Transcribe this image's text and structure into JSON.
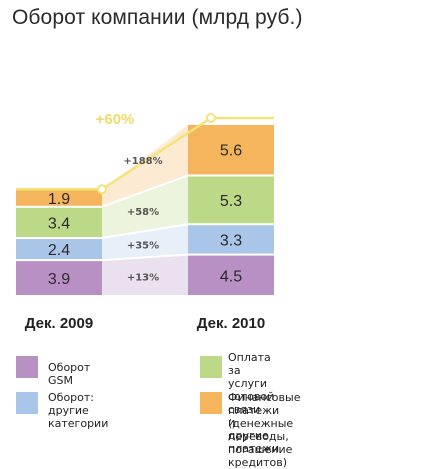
{
  "chart_data": {
    "type": "bar",
    "title": "Оборот компании (млрд руб.)",
    "categories": [
      "Дек. 2009",
      "Дек. 2010"
    ],
    "stacked": true,
    "series": [
      {
        "name": "Оборот GSM",
        "values": [
          3.9,
          4.5
        ],
        "color": "#b890c4",
        "change": "+13%"
      },
      {
        "name": "Оборот: другие категории",
        "values": [
          2.4,
          3.3
        ],
        "color": "#a9c6e8",
        "change": "+35%"
      },
      {
        "name": "Оплата за услуги сотовой связи и другие платежи",
        "values": [
          3.4,
          5.3
        ],
        "color": "#bcd987",
        "change": "+58%"
      },
      {
        "name": "Финансовые платежи (денежные переводы, погашение кредитов)",
        "values": [
          1.9,
          5.6
        ],
        "color": "#f4b55d",
        "change": "+188%"
      }
    ],
    "total_change": "+60%",
    "accent_color": "#f2e37a",
    "legend": [
      {
        "line1": "Оборот GSM",
        "line2": ""
      },
      {
        "line1": "Оборот:",
        "line2": "другие категории"
      },
      {
        "line1": "Оплата за услуги сотовой связи",
        "line2": "и другие платежи"
      },
      {
        "line1": "Финансовые платежи (денежные",
        "line2": "переводы, погашение кредитов)"
      }
    ]
  }
}
